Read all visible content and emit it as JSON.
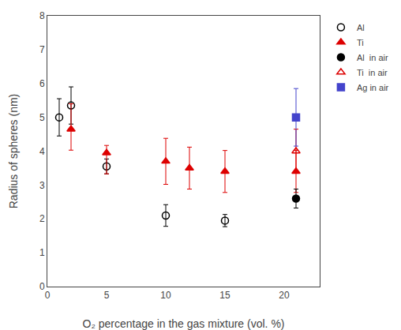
{
  "chart_data": {
    "type": "scatter",
    "xlabel": "O₂ percentage in the gas mixture (vol. %)",
    "ylabel": "Radius of spheres (nm)",
    "xlim": [
      0,
      23
    ],
    "ylim": [
      0,
      8
    ],
    "xticks": [
      0,
      5,
      10,
      15,
      20
    ],
    "yticks": [
      0,
      1,
      2,
      3,
      4,
      5,
      6,
      7,
      8
    ],
    "grid": false,
    "legend": "upper right",
    "series": [
      {
        "name": "Al",
        "color": "black",
        "marker": "circle-open",
        "x": [
          1,
          2,
          5,
          10,
          15
        ],
        "values": [
          5.0,
          5.35,
          3.55,
          2.1,
          1.95
        ],
        "yerr_lo": [
          0.55,
          0.55,
          0.22,
          0.32,
          0.18
        ],
        "yerr_hi": [
          0.55,
          0.55,
          0.22,
          0.32,
          0.18
        ]
      },
      {
        "name": "Ti",
        "color": "#dd0000",
        "marker": "triangle-up",
        "x": [
          2,
          5,
          10,
          12,
          15,
          21
        ],
        "values": [
          4.65,
          3.95,
          3.7,
          3.5,
          3.4,
          3.4
        ],
        "yerr_lo": [
          0.62,
          0.62,
          0.68,
          0.62,
          0.62,
          0.62
        ],
        "yerr_hi": [
          0.75,
          0.22,
          0.68,
          0.62,
          0.62,
          0.62
        ]
      },
      {
        "name": "Al  in air",
        "color": "black",
        "marker": "circle",
        "x": [
          21
        ],
        "values": [
          2.6
        ],
        "yerr_lo": [
          0.28
        ],
        "yerr_hi": [
          0.28
        ]
      },
      {
        "name": "Ti  in air",
        "color": "#dd0000",
        "marker": "triangle-up-open",
        "x": [
          21
        ],
        "values": [
          4.0
        ],
        "yerr_lo": [
          0.65
        ],
        "yerr_hi": [
          0.65
        ]
      },
      {
        "name": "Ag in air",
        "color": "#4444cc",
        "marker": "square",
        "x": [
          21
        ],
        "values": [
          5.0
        ],
        "yerr_lo": [
          0.85
        ],
        "yerr_hi": [
          0.85
        ]
      }
    ]
  }
}
